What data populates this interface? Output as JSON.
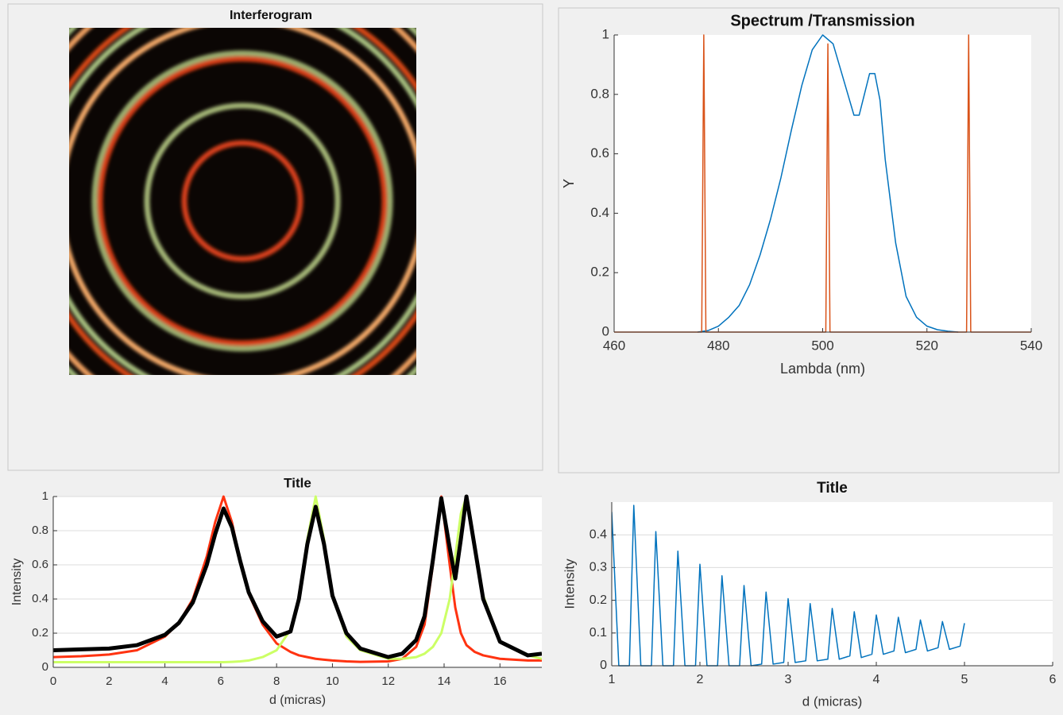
{
  "chart_data": [
    {
      "type": "image",
      "title": "Interferogram"
    },
    {
      "type": "line",
      "title": "Spectrum /Transmission",
      "xlabel": "Lambda (nm)",
      "ylabel": "Y",
      "xlim": [
        460,
        540
      ],
      "xticks": [
        460,
        480,
        500,
        520,
        540
      ],
      "ylim": [
        0,
        1
      ],
      "yticks": [
        0,
        0.2,
        0.4,
        0.6,
        0.8,
        1
      ],
      "grid": false,
      "series": [
        {
          "color": "#0072bd",
          "linewidth": 1.5,
          "x": [
            476,
            478,
            480,
            482,
            484,
            486,
            488,
            490,
            492,
            494,
            496,
            498,
            500,
            502,
            504,
            506,
            507,
            508,
            509,
            510,
            511,
            512,
            514,
            516,
            518,
            520,
            522,
            524,
            526
          ],
          "values": [
            0,
            0.005,
            0.02,
            0.05,
            0.09,
            0.16,
            0.26,
            0.38,
            0.52,
            0.68,
            0.83,
            0.95,
            1.0,
            0.97,
            0.85,
            0.73,
            0.73,
            0.8,
            0.87,
            0.87,
            0.78,
            0.58,
            0.3,
            0.12,
            0.05,
            0.02,
            0.008,
            0.003,
            0
          ]
        },
        {
          "color": "#d95319",
          "linewidth": 1.5,
          "x": [
            460,
            476.8,
            477.2,
            477.6,
            500.6,
            501,
            501.4,
            527.6,
            528,
            528.4,
            540
          ],
          "values": [
            0,
            0,
            1,
            0,
            0,
            0.97,
            0,
            0,
            1,
            0,
            0
          ]
        }
      ]
    },
    {
      "type": "line",
      "title": "Title",
      "xlabel": "d (micras)",
      "ylabel": "Intensity",
      "xlim": [
        0,
        17.5
      ],
      "xticks": [
        0,
        2,
        4,
        6,
        8,
        10,
        12,
        14,
        16
      ],
      "ylim": [
        0,
        1
      ],
      "yticks": [
        0,
        0.2,
        0.4,
        0.6,
        0.8,
        1
      ],
      "grid": true,
      "x": [
        0,
        1,
        2,
        3,
        4,
        4.5,
        5,
        5.5,
        5.8,
        6.1,
        6.4,
        6.7,
        7,
        7.5,
        8,
        8.5,
        8.8,
        9.1,
        9.4,
        9.7,
        10,
        10.5,
        11,
        12,
        12.5,
        13,
        13.3,
        13.6,
        13.9,
        14.2,
        14.4,
        14.6,
        14.8,
        15.1,
        15.4,
        16,
        17,
        17.5
      ],
      "series": [
        {
          "color": "#ff3311",
          "linewidth": 3,
          "values": [
            0.06,
            0.065,
            0.075,
            0.1,
            0.18,
            0.26,
            0.4,
            0.65,
            0.85,
            1,
            0.85,
            0.62,
            0.43,
            0.25,
            0.14,
            0.09,
            0.07,
            0.06,
            0.05,
            0.045,
            0.04,
            0.035,
            0.032,
            0.035,
            0.05,
            0.12,
            0.25,
            0.6,
            1,
            0.6,
            0.35,
            0.2,
            0.13,
            0.09,
            0.07,
            0.05,
            0.04,
            0.04
          ]
        },
        {
          "color": "#ccff66",
          "linewidth": 3,
          "values": [
            0.03,
            0.03,
            0.03,
            0.03,
            0.03,
            0.03,
            0.03,
            0.03,
            0.03,
            0.03,
            0.032,
            0.035,
            0.04,
            0.06,
            0.1,
            0.22,
            0.4,
            0.75,
            1,
            0.75,
            0.42,
            0.18,
            0.1,
            0.05,
            0.05,
            0.06,
            0.08,
            0.12,
            0.2,
            0.4,
            0.65,
            0.9,
            1,
            0.7,
            0.42,
            0.15,
            0.07,
            0.05
          ]
        },
        {
          "color": "#000000",
          "linewidth": 5,
          "values": [
            0.1,
            0.105,
            0.11,
            0.13,
            0.19,
            0.26,
            0.38,
            0.6,
            0.78,
            0.93,
            0.82,
            0.62,
            0.44,
            0.27,
            0.18,
            0.21,
            0.4,
            0.72,
            0.94,
            0.72,
            0.42,
            0.2,
            0.11,
            0.06,
            0.08,
            0.16,
            0.3,
            0.63,
            0.99,
            0.7,
            0.52,
            0.75,
            1,
            0.7,
            0.4,
            0.15,
            0.07,
            0.08
          ]
        }
      ]
    },
    {
      "type": "line",
      "title": "Title",
      "xlabel": "d (micras)",
      "ylabel": "Intensity",
      "xlim": [
        1,
        6
      ],
      "xticks": [
        1,
        2,
        3,
        4,
        5,
        6
      ],
      "ylim": [
        0,
        0.5
      ],
      "yticks": [
        0,
        0.1,
        0.2,
        0.3,
        0.4
      ],
      "grid": true,
      "x": [
        1,
        1.08,
        1.2,
        1.25,
        1.33,
        1.45,
        1.5,
        1.58,
        1.7,
        1.75,
        1.83,
        1.95,
        2,
        2.08,
        2.2,
        2.25,
        2.33,
        2.45,
        2.5,
        2.58,
        2.7,
        2.75,
        2.83,
        2.95,
        3,
        3.08,
        3.2,
        3.25,
        3.33,
        3.45,
        3.5,
        3.58,
        3.7,
        3.75,
        3.83,
        3.95,
        4,
        4.08,
        4.2,
        4.25,
        4.33,
        4.45,
        4.5,
        4.58,
        4.7,
        4.75,
        4.83,
        4.95,
        5
      ],
      "series": [
        {
          "color": "#0072bd",
          "linewidth": 1.5,
          "values": [
            0.47,
            0,
            0,
            0.49,
            0,
            0,
            0.41,
            0,
            0,
            0.35,
            0,
            0,
            0.31,
            0,
            0,
            0.275,
            0,
            0,
            0.245,
            0,
            0.005,
            0.225,
            0.005,
            0.01,
            0.205,
            0.01,
            0.015,
            0.19,
            0.015,
            0.02,
            0.175,
            0.02,
            0.03,
            0.165,
            0.025,
            0.035,
            0.155,
            0.035,
            0.045,
            0.148,
            0.04,
            0.05,
            0.14,
            0.045,
            0.055,
            0.135,
            0.05,
            0.06,
            0.13
          ]
        }
      ]
    }
  ]
}
